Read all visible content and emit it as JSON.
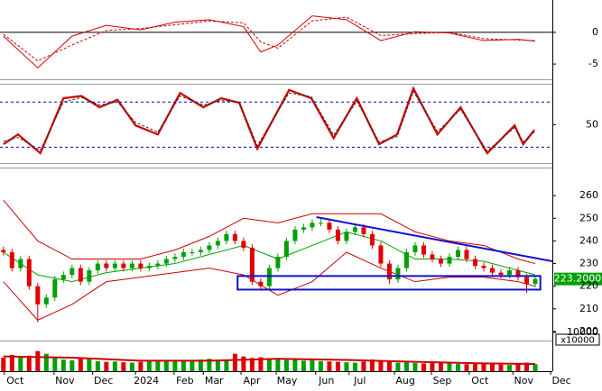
{
  "chart_data": [
    {
      "type": "line",
      "ylim": [
        -7.4,
        5.1
      ],
      "yticks": [
        0,
        -5
      ],
      "zero_line": true,
      "series": [
        {
          "color": "#d00000",
          "dash": false,
          "x": [
            0,
            4,
            8,
            12,
            16,
            20,
            24,
            28,
            30,
            32,
            36,
            40,
            44,
            48,
            52,
            56,
            60,
            62
          ],
          "values": [
            -0.6,
            -5.6,
            -0.6,
            1.1,
            0.4,
            1.6,
            2.0,
            0.9,
            -3.1,
            -2.0,
            2.6,
            2.0,
            -1.3,
            0.1,
            -0.1,
            -1.3,
            -1.1,
            -1.4
          ]
        },
        {
          "color": "#d00000",
          "dash": true,
          "x": [
            0,
            4,
            8,
            12,
            16,
            20,
            24,
            28,
            30,
            32,
            36,
            40,
            44,
            48,
            52,
            56,
            60,
            62
          ],
          "values": [
            -0.3,
            -4.5,
            -2,
            0.3,
            0.6,
            1.2,
            1.8,
            1.5,
            -1.5,
            -2.5,
            1.8,
            2.4,
            -0.5,
            -0.2,
            0,
            -1.0,
            -1.2,
            -1.3
          ]
        }
      ]
    },
    {
      "type": "line",
      "ylim": [
        -1,
        103
      ],
      "yticks": [
        50
      ],
      "hlines": [
        80,
        20
      ],
      "hline_color": "#0000c0",
      "series": [
        {
          "color": "#cc0000",
          "dash": false,
          "width": 2.2,
          "x": [
            0,
            1.7,
            4.3,
            7.0,
            9.1,
            11.2,
            13.3,
            15.4,
            18.0,
            20.6,
            23.3,
            25.4,
            27.5,
            29.6,
            33.3,
            35.9,
            38.5,
            41.2,
            43.8,
            45.9,
            47.8,
            50.6,
            53.3,
            56.4,
            59.6,
            60.6,
            61.9
          ],
          "values": [
            24,
            37,
            12,
            85,
            88,
            73,
            83,
            49,
            37,
            92,
            73,
            85,
            79,
            18,
            96,
            85,
            32,
            85,
            24,
            37,
            98,
            37,
            73,
            12,
            49,
            24,
            43
          ]
        },
        {
          "color": "#333333",
          "dash": true,
          "width": 1,
          "x": [
            0,
            1.7,
            4.3,
            7.0,
            9.1,
            11.2,
            13.3,
            15.4,
            18.0,
            20.6,
            23.3,
            25.4,
            27.5,
            29.6,
            33.3,
            35.9,
            38.5,
            41.2,
            43.8,
            45.9,
            47.8,
            50.6,
            53.3,
            56.4,
            59.6,
            60.6,
            61.9
          ],
          "values": [
            28,
            33,
            16,
            80,
            86,
            76,
            80,
            53,
            40,
            88,
            76,
            82,
            80,
            22,
            92,
            87,
            36,
            81,
            27,
            34,
            94,
            41,
            70,
            15,
            46,
            27,
            40
          ]
        }
      ]
    },
    {
      "type": "candlestick",
      "ylim": [
        196,
        272
      ],
      "yticks": [
        260,
        250,
        240,
        230,
        220,
        210,
        200
      ],
      "up_color": "#00a000",
      "down_color": "#e00000",
      "open": [
        236,
        235,
        228,
        232,
        220,
        212,
        215,
        223,
        225,
        228,
        222,
        227,
        230,
        228,
        230,
        228,
        230,
        228,
        229,
        230,
        232,
        233,
        235,
        235,
        236,
        238,
        240,
        243,
        240,
        237,
        222,
        220,
        228,
        233,
        240,
        245,
        246,
        248,
        248,
        245,
        240,
        244,
        246,
        243,
        238,
        230,
        223,
        228,
        235,
        238,
        234,
        232,
        230,
        233,
        236,
        232,
        229,
        228,
        226,
        225,
        227,
        224,
        221
      ],
      "high": [
        237.5,
        236.5,
        233.5,
        233.5,
        221.5,
        216.5,
        224.5,
        226.5,
        229.5,
        229.5,
        228.5,
        231.5,
        231.5,
        231.5,
        231.5,
        231.5,
        231.5,
        230.5,
        231.5,
        233.5,
        234.5,
        236.5,
        236.5,
        237.5,
        239.5,
        241.5,
        244.5,
        244.5,
        241.5,
        238.5,
        223.5,
        229.5,
        234.5,
        241.5,
        246.5,
        247.5,
        249.5,
        250,
        249.5,
        246.5,
        245.5,
        247.5,
        247.5,
        244.5,
        239.5,
        231.5,
        229.5,
        236.5,
        239.5,
        239.5,
        235.5,
        233.5,
        234.5,
        237.5,
        237.5,
        233.5,
        230.5,
        229.5,
        227.5,
        228.5,
        228.5,
        225.5,
        224.5
      ],
      "low": [
        233.5,
        226.5,
        226.5,
        218.5,
        204,
        210.5,
        213.5,
        221.5,
        223.5,
        220.5,
        220.5,
        225.5,
        226.5,
        226.5,
        226.5,
        226.5,
        226.5,
        226.5,
        227.5,
        228.5,
        230.5,
        231.5,
        233.5,
        233.5,
        234.5,
        236.5,
        238.5,
        238.5,
        235.5,
        220.5,
        218,
        218.5,
        226.5,
        231.5,
        238.5,
        243.5,
        244.5,
        246.5,
        243.5,
        238.5,
        238.5,
        242.5,
        241.5,
        236.5,
        228.5,
        221,
        221.5,
        226.5,
        233.5,
        232.5,
        230.5,
        228.5,
        228.5,
        231.5,
        230.5,
        227.5,
        226.5,
        224.5,
        223.5,
        223.5,
        222.5,
        217,
        219.5
      ],
      "close": [
        235,
        228,
        232,
        220,
        212,
        215,
        223,
        225,
        228,
        222,
        227,
        230,
        228,
        230,
        228,
        230,
        228,
        229,
        230,
        232,
        233,
        235,
        235,
        236,
        238,
        240,
        243,
        240,
        237,
        222,
        220,
        228,
        233,
        240,
        245,
        246,
        248,
        248,
        245,
        240,
        244,
        246,
        243,
        238,
        230,
        223,
        228,
        235,
        238,
        234,
        232,
        230,
        233,
        236,
        232,
        229,
        228,
        226,
        225,
        227,
        224,
        221,
        223.2
      ],
      "bands": [
        {
          "color": "#cc0000",
          "x": [
            0,
            4,
            8,
            12,
            16,
            20,
            24,
            28,
            32,
            36,
            40,
            44,
            48,
            52,
            56,
            60,
            62
          ],
          "values": [
            258,
            240,
            232,
            232,
            232,
            236,
            242,
            250,
            248,
            252,
            252,
            252,
            244,
            240,
            238,
            232,
            230
          ]
        },
        {
          "color": "#00a000",
          "x": [
            0,
            4,
            8,
            12,
            16,
            20,
            24,
            28,
            32,
            36,
            40,
            44,
            48,
            52,
            56,
            60,
            62
          ],
          "values": [
            235,
            225,
            222,
            226,
            228,
            230,
            234,
            238,
            232,
            238,
            244,
            240,
            232,
            232,
            231,
            227,
            225
          ]
        },
        {
          "color": "#cc0000",
          "x": [
            0,
            4,
            8,
            12,
            16,
            20,
            24,
            28,
            32,
            36,
            40,
            44,
            48,
            52,
            56,
            60,
            62
          ],
          "values": [
            222,
            205,
            212,
            222,
            224,
            226,
            228,
            225,
            216,
            222,
            235,
            228,
            222,
            224,
            224,
            222,
            220
          ]
        }
      ],
      "trendline": {
        "color": "#1010d0",
        "x": [
          36.5,
          64
        ],
        "values": [
          250.5,
          231
        ]
      },
      "box": {
        "color": "#1010d0",
        "x": [
          27.3,
          62.6
        ],
        "values": [
          218.5,
          224.5
        ]
      },
      "last_price": {
        "value": 223.2,
        "label": "223.2000"
      },
      "label_color": "#00a000"
    },
    {
      "type": "bar",
      "ylim": [
        0,
        10930
      ],
      "yticks": [
        10000
      ],
      "unit_label": "x10000",
      "values": [
        3500,
        4200,
        3800,
        4000,
        5200,
        4500,
        3600,
        3000,
        2800,
        3300,
        3100,
        2600,
        2400,
        2500,
        2300,
        2200,
        2400,
        2600,
        2500,
        2700,
        2800,
        2600,
        2900,
        3000,
        3200,
        2700,
        3000,
        4500,
        3800,
        3400,
        3600,
        3300,
        3100,
        2900,
        3000,
        2700,
        2800,
        2600,
        2500,
        2400,
        2300,
        2200,
        2500,
        3000,
        2600,
        2400,
        2200,
        2300,
        2100,
        2000,
        2200,
        2300,
        2100,
        1900,
        1800,
        2000,
        1900,
        1800,
        1700,
        1600,
        1900,
        2200,
        1800
      ],
      "ma": {
        "color": "#cc0000",
        "x": [
          0,
          8,
          16,
          24,
          32,
          40,
          48,
          56,
          62
        ],
        "values": [
          3800,
          3500,
          2700,
          2700,
          3200,
          2900,
          2400,
          2000,
          1850
        ]
      },
      "xlim": [
        -0.4,
        64
      ],
      "xticks": [
        {
          "value": 0.1,
          "label": "Oct"
        },
        {
          "value": 5.9,
          "label": "Nov"
        },
        {
          "value": 10.4,
          "label": "Dec"
        },
        {
          "value": 15.4,
          "label": "2024"
        },
        {
          "value": 19.9,
          "label": "Feb"
        },
        {
          "value": 23.3,
          "label": "Mar"
        },
        {
          "value": 27.7,
          "label": "Apr"
        },
        {
          "value": 31.8,
          "label": "May"
        },
        {
          "value": 36.4,
          "label": "Jun"
        },
        {
          "value": 40.3,
          "label": "Jul"
        },
        {
          "value": 45.6,
          "label": "Aug"
        },
        {
          "value": 49.9,
          "label": "Sep"
        },
        {
          "value": 54.3,
          "label": "Oct"
        },
        {
          "value": 59.4,
          "label": "Nov"
        },
        {
          "value": 63.8,
          "label": "Dec"
        }
      ]
    }
  ]
}
